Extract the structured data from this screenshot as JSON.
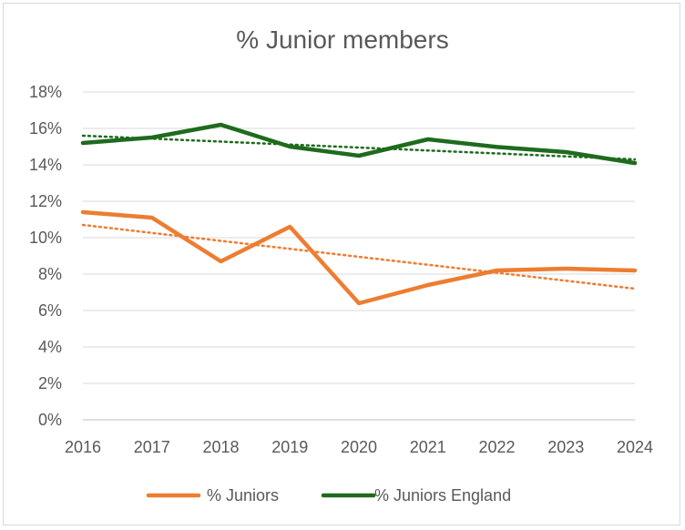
{
  "chart_data": {
    "type": "line",
    "title": "% Junior members",
    "xlabel": "",
    "ylabel": "",
    "categories": [
      "2016",
      "2017",
      "2018",
      "2019",
      "2020",
      "2021",
      "2022",
      "2023",
      "2024"
    ],
    "y_ticks": [
      "0%",
      "2%",
      "4%",
      "6%",
      "8%",
      "10%",
      "12%",
      "14%",
      "16%",
      "18%"
    ],
    "ylim": [
      0,
      18
    ],
    "grid": true,
    "legend_position": "bottom",
    "series": [
      {
        "name": "% Juniors",
        "color": "#ed7d31",
        "values": [
          11.4,
          11.1,
          8.7,
          10.6,
          6.4,
          7.4,
          8.2,
          8.3,
          8.2
        ],
        "trendline": [
          10.7,
          7.2
        ]
      },
      {
        "name": "% Juniors England",
        "color": "#1e6b1e",
        "values": [
          15.2,
          15.5,
          16.2,
          15.0,
          14.5,
          15.4,
          14.98,
          14.7,
          14.1
        ],
        "trendline": [
          15.6,
          14.3
        ]
      }
    ]
  }
}
